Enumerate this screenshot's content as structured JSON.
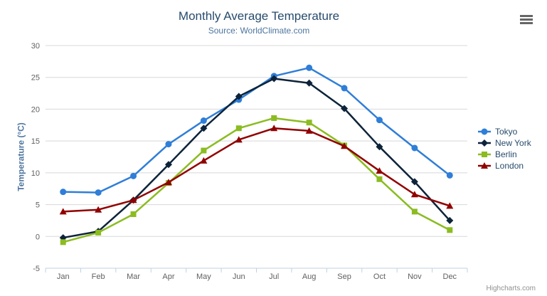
{
  "header": {
    "title": "Monthly Average Temperature",
    "subtitle": "Source: WorldClimate.com"
  },
  "credits": {
    "text": "Highcharts.com"
  },
  "icons": {
    "context_menu": "hamburger-icon"
  },
  "colors": {
    "background": "#ffffff",
    "title": "#274b6d",
    "subtitle": "#4d759e",
    "axis_title": "#4d759e",
    "tick_label": "#606060",
    "grid": "#d8d8d8",
    "axis_line": "#c0d0e0",
    "legend_text": "#274b6d",
    "credits": "#909090",
    "hamburger": "#666666"
  },
  "chart_data": {
    "type": "line",
    "title": "Monthly Average Temperature",
    "subtitle": "Source: WorldClimate.com",
    "xlabel": "",
    "ylabel": "Temperature (°C)",
    "ylim": [
      -5,
      30
    ],
    "ytick_interval": 5,
    "grid": true,
    "legend_position": "right-middle",
    "categories": [
      "Jan",
      "Feb",
      "Mar",
      "Apr",
      "May",
      "Jun",
      "Jul",
      "Aug",
      "Sep",
      "Oct",
      "Nov",
      "Dec"
    ],
    "series": [
      {
        "name": "Tokyo",
        "color": "#2f7ed8",
        "marker": "circle",
        "values": [
          7.0,
          6.9,
          9.5,
          14.5,
          18.2,
          21.5,
          25.2,
          26.5,
          23.3,
          18.3,
          13.9,
          9.6
        ]
      },
      {
        "name": "New York",
        "color": "#0d233a",
        "marker": "diamond",
        "values": [
          -0.2,
          0.8,
          5.7,
          11.3,
          17.0,
          22.0,
          24.8,
          24.1,
          20.1,
          14.1,
          8.6,
          2.5
        ]
      },
      {
        "name": "Berlin",
        "color": "#8bbc21",
        "marker": "square",
        "values": [
          -0.9,
          0.6,
          3.5,
          8.4,
          13.5,
          17.0,
          18.6,
          17.9,
          14.3,
          9.0,
          3.9,
          1.0
        ]
      },
      {
        "name": "London",
        "color": "#910000",
        "marker": "triangle",
        "values": [
          3.9,
          4.2,
          5.7,
          8.5,
          11.9,
          15.2,
          17.0,
          16.6,
          14.2,
          10.3,
          6.6,
          4.8
        ]
      }
    ]
  }
}
